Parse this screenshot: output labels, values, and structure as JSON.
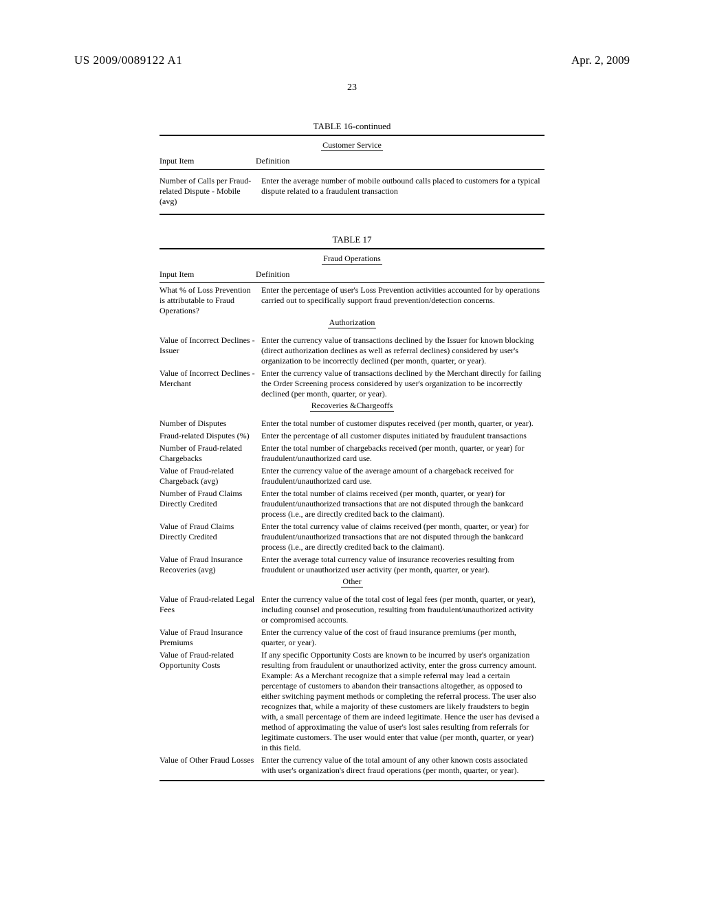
{
  "header": {
    "publication_number": "US 2009/0089122 A1",
    "publication_date": "Apr. 2, 2009",
    "page_number": "23"
  },
  "table16": {
    "title": "TABLE 16-continued",
    "section": "Customer Service",
    "col_input": "Input Item",
    "col_def": "Definition",
    "rows": [
      {
        "input": "Number of Calls per Fraud-related Dispute - Mobile (avg)",
        "definition": "Enter the average number of mobile outbound calls placed to customers for a typical dispute related to a fraudulent transaction"
      }
    ]
  },
  "table17": {
    "title": "TABLE 17",
    "section": "Fraud Operations",
    "col_input": "Input Item",
    "col_def": "Definition",
    "intro_row": {
      "input": "What % of Loss Prevention is attributable to Fraud Operations?",
      "definition": "Enter the percentage of user's Loss Prevention activities accounted for by operations carried out to specifically support fraud prevention/detection concerns."
    },
    "sections": [
      {
        "label": "Authorization",
        "rows": [
          {
            "input": "Value of Incorrect Declines - Issuer",
            "definition": "Enter the currency value of transactions declined by the Issuer for known blocking (direct authorization declines as well as referral declines) considered by user's organization to be incorrectly declined (per month, quarter, or year)."
          },
          {
            "input": "Value of Incorrect Declines - Merchant",
            "definition": "Enter the currency value of transactions declined by the Merchant directly for failing the Order Screening process considered by user's organization to be incorrectly declined (per month, quarter, or year)."
          }
        ]
      },
      {
        "label": "Recoveries &Chargeoffs",
        "rows": [
          {
            "input": "Number of Disputes",
            "definition": "Enter the total number of customer disputes received (per month, quarter, or year)."
          },
          {
            "input": "Fraud-related Disputes (%)",
            "definition": "Enter the percentage of all customer disputes initiated by fraudulent transactions"
          },
          {
            "input": "Number of Fraud-related Chargebacks",
            "definition": "Enter the total number of chargebacks received (per month, quarter, or year) for fraudulent/unauthorized card use."
          },
          {
            "input": "Value of Fraud-related Chargeback (avg)",
            "definition": "Enter the currency value of the average amount of a chargeback received for fraudulent/unauthorized card use."
          },
          {
            "input": "Number of Fraud Claims Directly Credited",
            "definition": "Enter the total number of claims received (per month, quarter, or year) for fraudulent/unauthorized transactions that are not disputed through the bankcard process (i.e., are directly credited back to the claimant)."
          },
          {
            "input": "Value of Fraud Claims Directly Credited",
            "definition": "Enter the total currency value of claims received (per month, quarter, or year) for fraudulent/unauthorized transactions that are not disputed through the bankcard process (i.e., are directly credited back to the claimant)."
          },
          {
            "input": "Value of Fraud Insurance Recoveries (avg)",
            "definition": "Enter the average total currency value of insurance recoveries resulting from fraudulent or unauthorized user activity (per month, quarter, or year)."
          }
        ]
      },
      {
        "label": "Other",
        "rows": [
          {
            "input": "Value of Fraud-related Legal Fees",
            "definition": "Enter the currency value of the total cost of legal fees (per month, quarter, or year), including counsel and prosecution, resulting from fraudulent/unauthorized activity or compromised accounts."
          },
          {
            "input": "Value of Fraud Insurance Premiums",
            "definition": "Enter the currency value of the cost of fraud insurance premiums (per month, quarter, or year)."
          },
          {
            "input": "Value of Fraud-related Opportunity Costs",
            "definition": "If any specific Opportunity Costs are known to be incurred by user's organization resulting from fraudulent or unauthorized activity, enter the gross currency amount.\nExample: As a Merchant recognize that a simple referral may lead a certain percentage of customers to abandon their transactions altogether, as opposed to either switching payment methods or completing the referral process. The user also recognizes that, while a majority of these customers are likely fraudsters to begin with, a small percentage of them are indeed legitimate. Hence the user has devised a method of approximating the value of user's lost sales resulting from referrals for legitimate customers. The user would enter that value (per month, quarter, or year) in this field."
          },
          {
            "input": "Value of Other Fraud Losses",
            "definition": "Enter the currency value of the total amount of any other known costs associated with user's organization's direct fraud operations (per month, quarter, or year)."
          }
        ]
      }
    ]
  }
}
